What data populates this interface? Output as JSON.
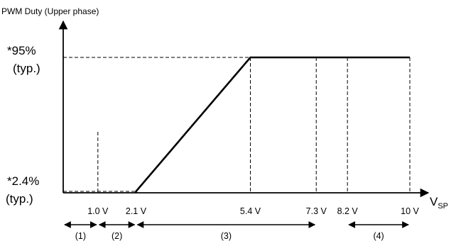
{
  "chart_data": {
    "type": "line",
    "ylabel": "PWM Duty (Upper phase)",
    "xlabel": "V",
    "xlabel_sub": "SP",
    "y_levels": [
      {
        "key": "low",
        "value": 2.4,
        "label_value": "*2.4%",
        "label_note": "(typ.)"
      },
      {
        "key": "high",
        "value": 95,
        "label_value": "*95%",
        "label_note": "(typ.)"
      }
    ],
    "x_ticks": [
      {
        "value": 1.0,
        "label": "1.0 V"
      },
      {
        "value": 2.1,
        "label": "2.1 V"
      },
      {
        "value": 5.4,
        "label": "5.4 V"
      },
      {
        "value": 7.3,
        "label": "7.3 V"
      },
      {
        "value": 8.2,
        "label": "8.2 V"
      },
      {
        "value": 10,
        "label": "10 V"
      }
    ],
    "series": [
      {
        "x": [
          2.1,
          2.1,
          5.4,
          10
        ],
        "y": [
          0,
          2.4,
          95,
          95
        ]
      }
    ],
    "regions": [
      {
        "label": "(1)",
        "from": 0,
        "to": 1.0
      },
      {
        "label": "(2)",
        "from": 1.0,
        "to": 2.1
      },
      {
        "label": "(3)",
        "from": 2.1,
        "to": 7.3
      },
      {
        "label": "(4)",
        "from": 8.2,
        "to": 10
      }
    ]
  }
}
